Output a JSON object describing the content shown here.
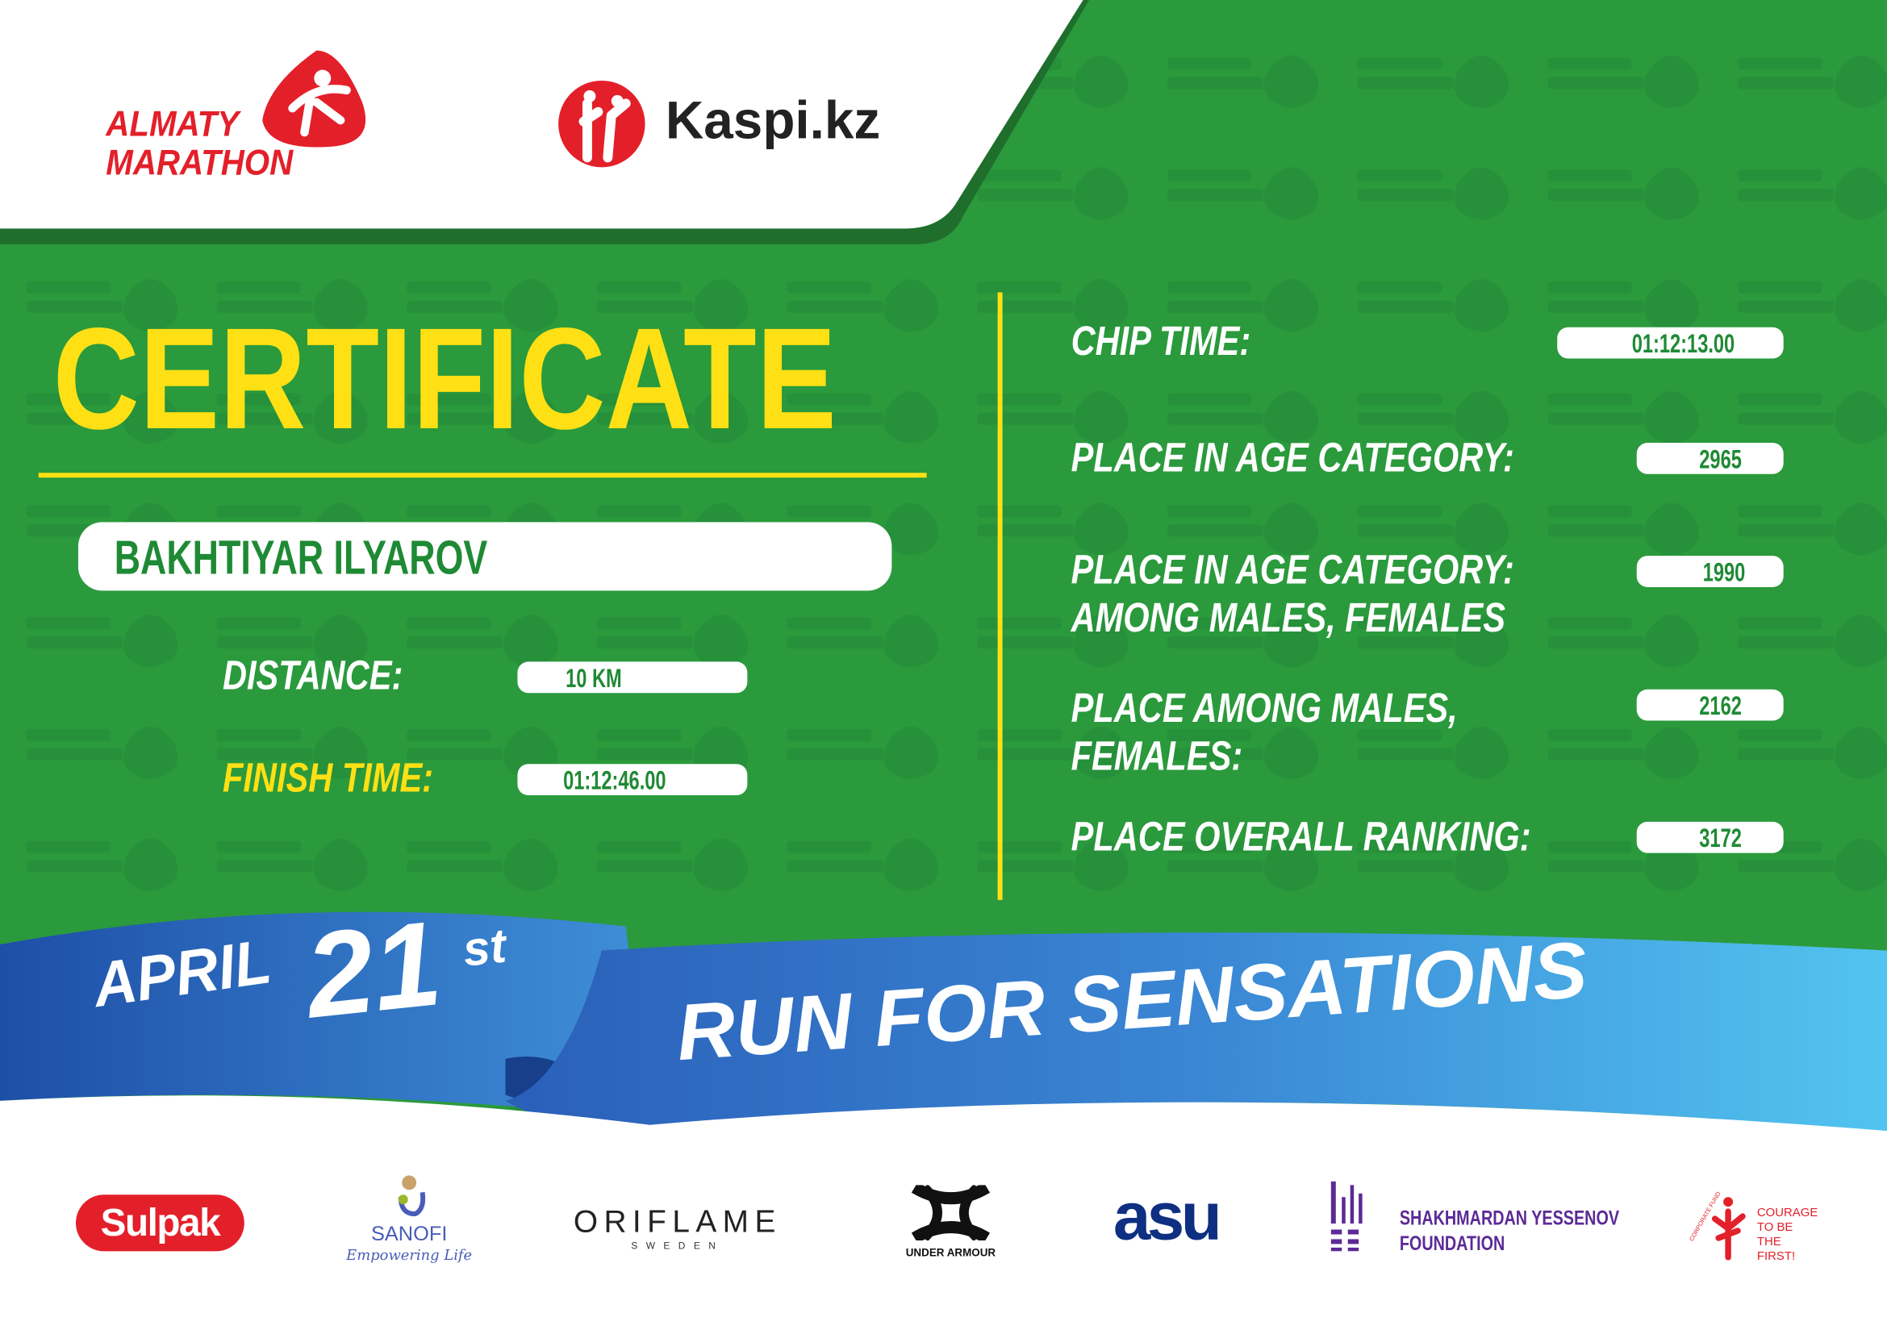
{
  "colors": {
    "green": "#2a9a3c",
    "dark_green": "#1f6e2c",
    "yellow": "#ffe014",
    "red": "#e3202a",
    "blue": "#2f6fc4",
    "light_blue": "#4ec0ee"
  },
  "header": {
    "event_logo": {
      "line1": "ALMATY",
      "line2": "MARATHON"
    },
    "sponsor_logo": "Kaspi.kz",
    "watermark": "ALMATY MARATHON"
  },
  "certificate": {
    "title": "CERTIFICATE",
    "participant_name": "BAKHTIYAR ILYAROV",
    "distance": {
      "label": "DISTANCE:",
      "value": "10 KM"
    },
    "finish_time": {
      "label": "FINISH TIME:",
      "value": "01:12:46.00"
    }
  },
  "results": [
    {
      "label_lines": [
        "CHIP TIME:"
      ],
      "value": "01:12:13.00"
    },
    {
      "label_lines": [
        "PLACE IN AGE CATEGORY:"
      ],
      "value": "2965"
    },
    {
      "label_lines": [
        "PLACE IN AGE CATEGORY:",
        "AMONG MALES, FEMALES"
      ],
      "value": "1990"
    },
    {
      "label_lines": [
        "PLACE AMONG MALES,",
        "FEMALES:"
      ],
      "value": "2162"
    },
    {
      "label_lines": [
        "PLACE OVERALL RANKING:"
      ],
      "value": "3172"
    }
  ],
  "ribbon": {
    "month": "APRIL",
    "day": "21",
    "suffix": "st",
    "slogan": "RUN FOR SENSATIONS"
  },
  "sponsors": {
    "sulpak": "Sulpak",
    "sanofi": {
      "name": "SANOFI",
      "tagline": "Empowering Life"
    },
    "oriflame": {
      "name": "ORIFLAME",
      "sub": "SWEDEN"
    },
    "under_armour": "UNDER ARMOUR",
    "asu": "asu",
    "yessenov": {
      "line1": "SHAKHMARDAN YESSENOV",
      "line2": "FOUNDATION"
    },
    "courage": {
      "arc": "CORPORATE FUND",
      "lines": [
        "COURAGE",
        "TO BE",
        "THE FIRST!"
      ]
    }
  }
}
